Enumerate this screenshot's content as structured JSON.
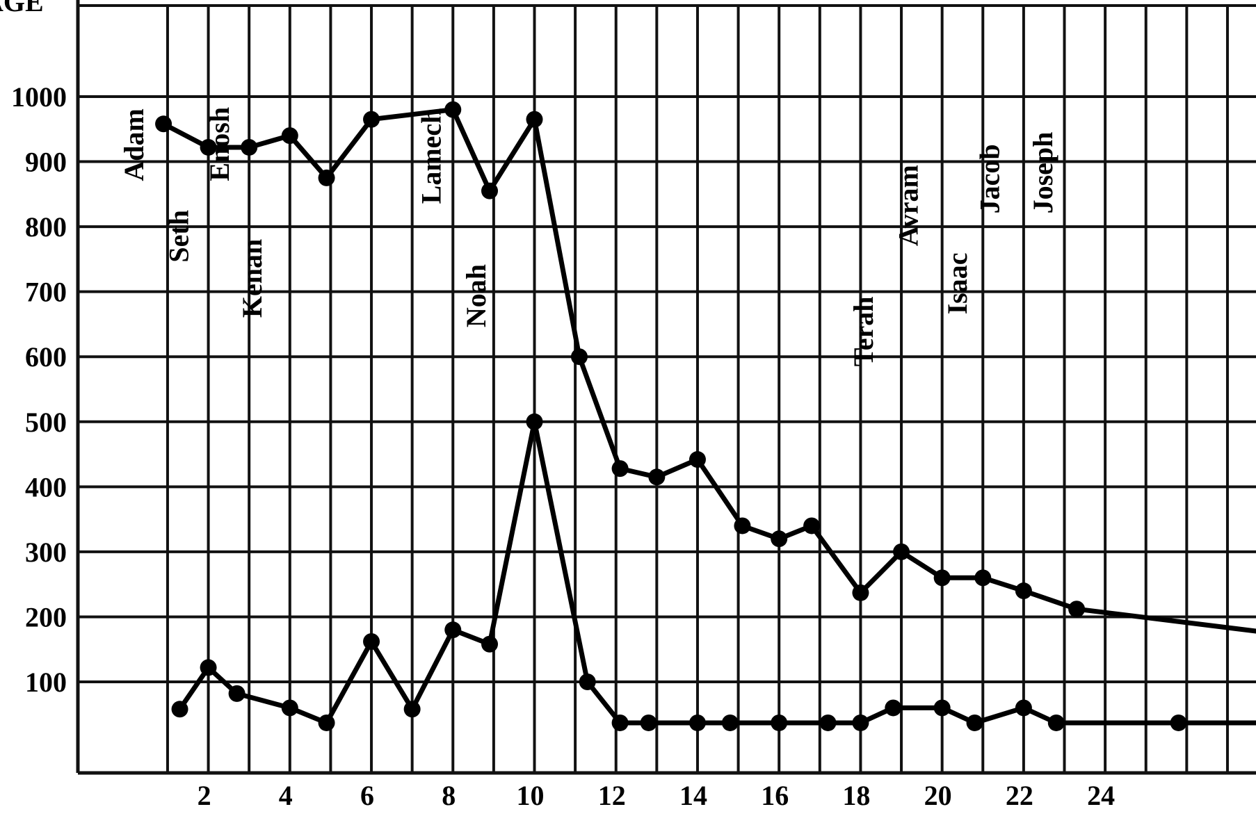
{
  "chart_data": {
    "type": "line",
    "ylabel": "AGE",
    "xlabel": "",
    "title": "",
    "xlim": [
      -1.2,
      27.7
    ],
    "ylim": [
      -40,
      1140
    ],
    "x_ticks": [
      2,
      4,
      6,
      8,
      10,
      12,
      14,
      16,
      18,
      20,
      22,
      24
    ],
    "x_tick_labels": [
      "2",
      "4",
      "6",
      "8",
      "10",
      "12",
      "14",
      "16",
      "18",
      "20",
      "22",
      "24"
    ],
    "y_ticks": [
      100,
      200,
      300,
      400,
      500,
      600,
      700,
      800,
      900,
      1000
    ],
    "y_tick_labels": [
      "100",
      "200",
      "300",
      "400",
      "500",
      "600",
      "700",
      "800",
      "900",
      "1000"
    ],
    "grid": true,
    "series": [
      {
        "values": [
          {
            "x": 0.9,
            "y": 958
          },
          {
            "x": 2.0,
            "y": 922
          },
          {
            "x": 3.0,
            "y": 922
          },
          {
            "x": 4.0,
            "y": 940
          },
          {
            "x": 4.9,
            "y": 875
          },
          {
            "x": 6.0,
            "y": 965
          },
          {
            "x": 8.0,
            "y": 980
          },
          {
            "x": 8.9,
            "y": 855
          },
          {
            "x": 10.0,
            "y": 965
          },
          {
            "x": 11.1,
            "y": 600
          },
          {
            "x": 12.1,
            "y": 428
          },
          {
            "x": 13.0,
            "y": 415
          },
          {
            "x": 14.0,
            "y": 442
          },
          {
            "x": 15.1,
            "y": 340
          },
          {
            "x": 16.0,
            "y": 320
          },
          {
            "x": 16.8,
            "y": 340
          },
          {
            "x": 18.0,
            "y": 237
          },
          {
            "x": 19.0,
            "y": 300
          },
          {
            "x": 20.0,
            "y": 260
          },
          {
            "x": 21.0,
            "y": 260
          },
          {
            "x": 22.0,
            "y": 240
          },
          {
            "x": 23.3,
            "y": 212
          },
          {
            "x": 27.7,
            "y": 178
          }
        ],
        "markers_until_index": 21
      },
      {
        "values": [
          {
            "x": 1.3,
            "y": 58
          },
          {
            "x": 2.0,
            "y": 122
          },
          {
            "x": 2.7,
            "y": 82
          },
          {
            "x": 4.0,
            "y": 60
          },
          {
            "x": 4.9,
            "y": 37
          },
          {
            "x": 6.0,
            "y": 162
          },
          {
            "x": 7.0,
            "y": 58
          },
          {
            "x": 8.0,
            "y": 180
          },
          {
            "x": 8.9,
            "y": 158
          },
          {
            "x": 10.0,
            "y": 500
          },
          {
            "x": 11.3,
            "y": 100
          },
          {
            "x": 12.1,
            "y": 37
          },
          {
            "x": 12.8,
            "y": 37
          },
          {
            "x": 14.0,
            "y": 37
          },
          {
            "x": 14.8,
            "y": 37
          },
          {
            "x": 16.0,
            "y": 37
          },
          {
            "x": 17.2,
            "y": 37
          },
          {
            "x": 18.0,
            "y": 37
          },
          {
            "x": 18.8,
            "y": 60
          },
          {
            "x": 20.0,
            "y": 60
          },
          {
            "x": 20.8,
            "y": 37
          },
          {
            "x": 22.0,
            "y": 60
          },
          {
            "x": 22.8,
            "y": 37
          },
          {
            "x": 25.8,
            "y": 37
          },
          {
            "x": 27.7,
            "y": 37
          }
        ],
        "markers_until_index": 23
      }
    ],
    "annotations": [
      {
        "text": "Adam",
        "x": 0.4,
        "y": 870
      },
      {
        "text": "Seth",
        "x": 1.5,
        "y": 745
      },
      {
        "text": "Enosh",
        "x": 2.5,
        "y": 870
      },
      {
        "text": "Kenan",
        "x": 3.3,
        "y": 660
      },
      {
        "text": "Lamech",
        "x": 7.7,
        "y": 835
      },
      {
        "text": "Noah",
        "x": 8.8,
        "y": 645
      },
      {
        "text": "Terah",
        "x": 18.3,
        "y": 585
      },
      {
        "text": "Avram",
        "x": 19.4,
        "y": 770
      },
      {
        "text": "Isaac",
        "x": 20.6,
        "y": 665
      },
      {
        "text": "Jacob",
        "x": 21.4,
        "y": 820
      },
      {
        "text": "Joseph",
        "x": 22.7,
        "y": 820
      }
    ]
  }
}
